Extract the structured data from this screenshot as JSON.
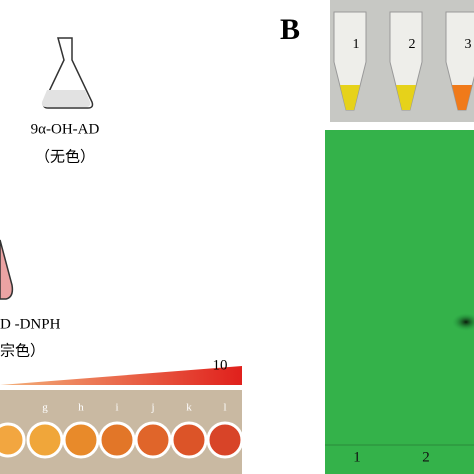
{
  "panel_b": {
    "label": "B",
    "tube_labels": [
      "1",
      "2",
      "3"
    ],
    "tlc_lanes": [
      "1",
      "2"
    ]
  },
  "panel_a": {
    "product_label": "9α-OH-AD",
    "product_note": "（无色）",
    "derivative_label": "D -DNPH",
    "derivative_note": "宗色）",
    "scale_max": "10",
    "wells": [
      "g",
      "h",
      "i",
      "j",
      "k",
      "l"
    ]
  }
}
